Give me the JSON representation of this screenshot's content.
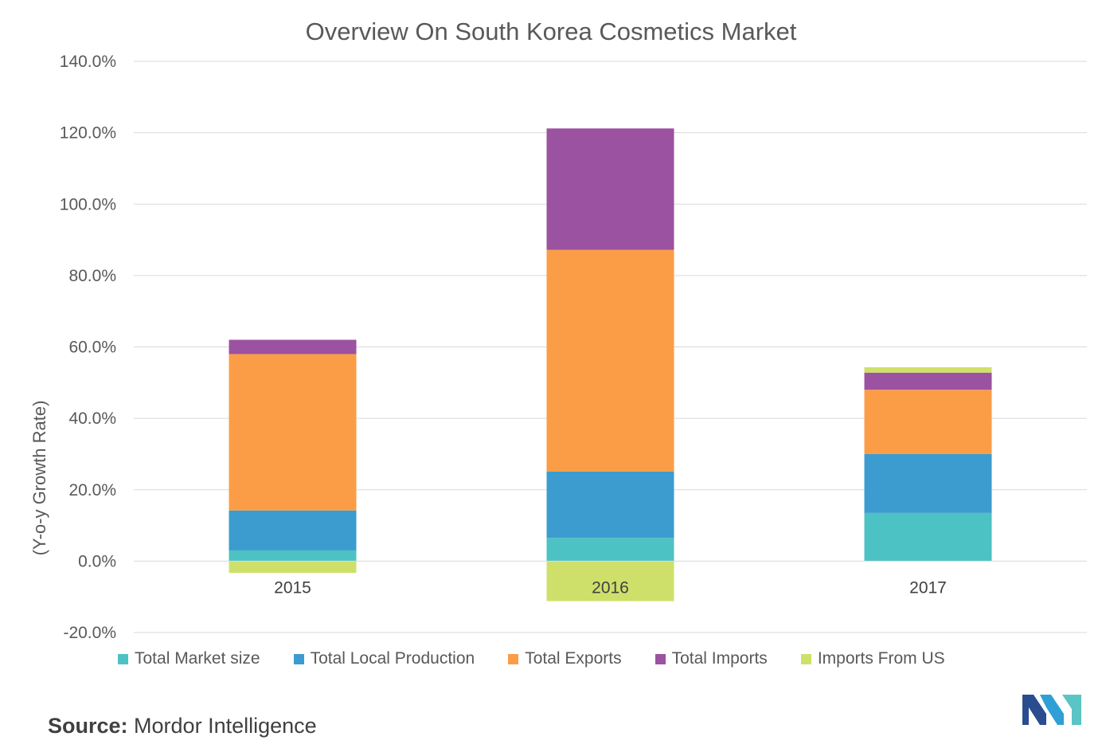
{
  "chart_data": {
    "type": "bar",
    "stacked": true,
    "title": "Overview On South Korea  Cosmetics Market",
    "ylabel": "(Y-o-y Growth Rate)",
    "xlabel": "",
    "ylim": [
      -20,
      140
    ],
    "yticks": [
      -20,
      0,
      20,
      40,
      60,
      80,
      100,
      120,
      140
    ],
    "ytick_labels": [
      "-20.0%",
      "0.0%",
      "20.0%",
      "40.0%",
      "60.0%",
      "80.0%",
      "100.0%",
      "120.0%",
      "140.0%"
    ],
    "grid": true,
    "legend_position": "bottom",
    "categories": [
      "2015",
      "2016",
      "2017"
    ],
    "series": [
      {
        "name": "Total Market size",
        "color": "#4dc2c4",
        "values": [
          3.0,
          6.5,
          13.5
        ]
      },
      {
        "name": "Total Local Production",
        "color": "#3c9ccf",
        "values": [
          11.2,
          18.6,
          16.5
        ]
      },
      {
        "name": "Total Exports",
        "color": "#fb9d46",
        "values": [
          43.8,
          62.1,
          18.0
        ]
      },
      {
        "name": "Total Imports",
        "color": "#9b52a0",
        "values": [
          4.0,
          34.0,
          4.8
        ]
      },
      {
        "name": "Imports From US",
        "color": "#cfe06a",
        "values": [
          -3.3,
          -11.2,
          1.5
        ]
      }
    ]
  },
  "source": {
    "label": "Source:",
    "text": "Mordor Intelligence"
  },
  "logo": {
    "colors": [
      "#2a4d8f",
      "#2f9fd6",
      "#5bc4c4"
    ]
  }
}
